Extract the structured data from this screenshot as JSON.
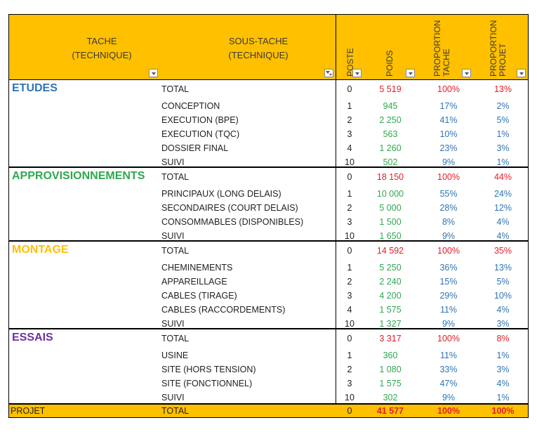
{
  "header": {
    "tache": "TACHE\n(TECHNIQUE)",
    "sous_tache": "SOUS-TACHE\n(TECHNIQUE)",
    "poste": "POSTE",
    "poids": "POIDS",
    "proportion_tache": "PROPORTION\nTACHE",
    "proportion_projet": "PROPORTION\nPROJET"
  },
  "colors": {
    "header_bg": "#ffc000",
    "etudes": "#2e75b6",
    "approvisionnements": "#2fa84f",
    "montage": "#ffc000",
    "essais": "#7030a0",
    "total_red": "#e0202a",
    "value_green": "#2fa84f",
    "value_blue": "#2e75b6"
  },
  "groups": [
    {
      "name": "ETUDES",
      "rows": [
        {
          "sous_tache": "TOTAL",
          "poste": "0",
          "poids": "5 519",
          "pt": "100%",
          "pp": "13%"
        },
        {
          "sous_tache": "CONCEPTION",
          "poste": "1",
          "poids": "945",
          "pt": "17%",
          "pp": "2%"
        },
        {
          "sous_tache": "EXECUTION (BPE)",
          "poste": "2",
          "poids": "2 250",
          "pt": "41%",
          "pp": "5%"
        },
        {
          "sous_tache": "EXECUTION (TQC)",
          "poste": "3",
          "poids": "563",
          "pt": "10%",
          "pp": "1%"
        },
        {
          "sous_tache": "DOSSIER FINAL",
          "poste": "4",
          "poids": "1 260",
          "pt": "23%",
          "pp": "3%"
        },
        {
          "sous_tache": "SUIVI",
          "poste": "10",
          "poids": "502",
          "pt": "9%",
          "pp": "1%"
        }
      ]
    },
    {
      "name": "APPROVISIONNEMENTS",
      "rows": [
        {
          "sous_tache": "TOTAL",
          "poste": "0",
          "poids": "18 150",
          "pt": "100%",
          "pp": "44%"
        },
        {
          "sous_tache": "PRINCIPAUX (LONG DELAIS)",
          "poste": "1",
          "poids": "10 000",
          "pt": "55%",
          "pp": "24%"
        },
        {
          "sous_tache": "SECONDAIRES (COURT DELAIS)",
          "poste": "2",
          "poids": "5 000",
          "pt": "28%",
          "pp": "12%"
        },
        {
          "sous_tache": "CONSOMMABLES (DISPONIBLES)",
          "poste": "3",
          "poids": "1 500",
          "pt": "8%",
          "pp": "4%"
        },
        {
          "sous_tache": "SUIVI",
          "poste": "10",
          "poids": "1 650",
          "pt": "9%",
          "pp": "4%"
        }
      ]
    },
    {
      "name": "MONTAGE",
      "rows": [
        {
          "sous_tache": "TOTAL",
          "poste": "0",
          "poids": "14 592",
          "pt": "100%",
          "pp": "35%"
        },
        {
          "sous_tache": "CHEMINEMENTS",
          "poste": "1",
          "poids": "5 250",
          "pt": "36%",
          "pp": "13%"
        },
        {
          "sous_tache": "APPAREILLAGE",
          "poste": "2",
          "poids": "2 240",
          "pt": "15%",
          "pp": "5%"
        },
        {
          "sous_tache": "CABLES (TIRAGE)",
          "poste": "3",
          "poids": "4 200",
          "pt": "29%",
          "pp": "10%"
        },
        {
          "sous_tache": "CABLES (RACCORDEMENTS)",
          "poste": "4",
          "poids": "1 575",
          "pt": "11%",
          "pp": "4%"
        },
        {
          "sous_tache": "SUIVI",
          "poste": "10",
          "poids": "1 327",
          "pt": "9%",
          "pp": "3%"
        }
      ]
    },
    {
      "name": "ESSAIS",
      "rows": [
        {
          "sous_tache": "TOTAL",
          "poste": "0",
          "poids": "3 317",
          "pt": "100%",
          "pp": "8%"
        },
        {
          "sous_tache": "USINE",
          "poste": "1",
          "poids": "360",
          "pt": "11%",
          "pp": "1%"
        },
        {
          "sous_tache": "SITE (HORS TENSION)",
          "poste": "2",
          "poids": "1 080",
          "pt": "33%",
          "pp": "3%"
        },
        {
          "sous_tache": "SITE (FONCTIONNEL)",
          "poste": "3",
          "poids": "1 575",
          "pt": "47%",
          "pp": "4%"
        },
        {
          "sous_tache": "SUIVI",
          "poste": "10",
          "poids": "302",
          "pt": "9%",
          "pp": "1%"
        }
      ]
    }
  ],
  "footer": {
    "tache": "PROJET",
    "sous_tache": "TOTAL",
    "poste": "0",
    "poids": "41 577",
    "pt": "100%",
    "pp": "100%"
  }
}
